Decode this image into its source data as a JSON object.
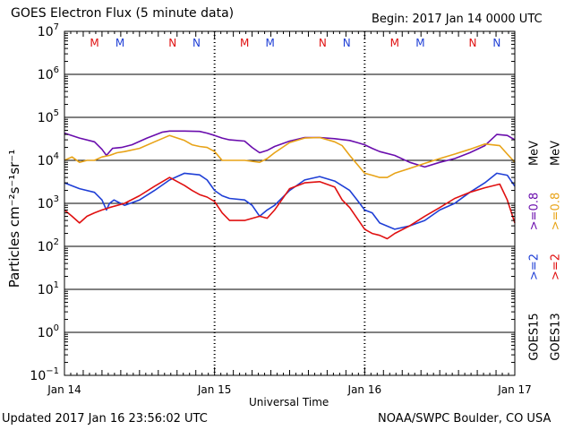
{
  "title": "GOES Electron Flux (5 minute data)",
  "begin_label": "Begin: 2017 Jan 14 0000 UTC",
  "updated_label": "Updated 2017 Jan 16 23:56:02 UTC",
  "credit": "NOAA/SWPC Boulder, CO USA",
  "colors": {
    "goes15_high": "#6a0dad",
    "goes13_high": "#e8a317",
    "goes15_low": "#1f3fd6",
    "goes13_low": "#e01010",
    "marker_M": "#e01010",
    "marker_N_red": "#e01010",
    "marker_N_blue": "#1f3fd6",
    "marker_M_blue": "#1f3fd6"
  },
  "legend": {
    "goes15": "GOES15",
    "goes13": "GOES13",
    "ge2": ">=2",
    "ge08": ">=0.8",
    "mev": "MeV"
  },
  "chart_data": {
    "type": "line",
    "title": "GOES Electron Flux (5 minute data)",
    "xlabel": "Universal Time",
    "ylabel": "Particles cm⁻²s⁻¹sr⁻¹",
    "yscale": "log",
    "ylim": [
      0.1,
      10000000
    ],
    "xlim_days": [
      0,
      3
    ],
    "x_tick_labels": [
      "Jan 14",
      "Jan 15",
      "Jan 16",
      "Jan 17"
    ],
    "y_tick_exponents": [
      -1,
      0,
      1,
      2,
      3,
      4,
      5,
      6,
      7
    ],
    "grid": true,
    "reference_line": 1000,
    "x_units": "days since Jan 14 0000 UTC",
    "markers": [
      {
        "x": 0.2,
        "label": "M",
        "color": "#e01010"
      },
      {
        "x": 0.37,
        "label": "M",
        "color": "#1f3fd6"
      },
      {
        "x": 0.72,
        "label": "N",
        "color": "#e01010"
      },
      {
        "x": 0.88,
        "label": "N",
        "color": "#1f3fd6"
      },
      {
        "x": 1.2,
        "label": "M",
        "color": "#e01010"
      },
      {
        "x": 1.37,
        "label": "M",
        "color": "#1f3fd6"
      },
      {
        "x": 1.72,
        "label": "N",
        "color": "#e01010"
      },
      {
        "x": 1.88,
        "label": "N",
        "color": "#1f3fd6"
      },
      {
        "x": 2.2,
        "label": "M",
        "color": "#e01010"
      },
      {
        "x": 2.37,
        "label": "M",
        "color": "#1f3fd6"
      },
      {
        "x": 2.72,
        "label": "N",
        "color": "#e01010"
      },
      {
        "x": 2.88,
        "label": "N",
        "color": "#1f3fd6"
      }
    ],
    "series": [
      {
        "name": "GOES15 >=0.8 MeV",
        "color": "#6a0dad",
        "x": [
          0.0,
          0.1,
          0.2,
          0.25,
          0.28,
          0.32,
          0.38,
          0.45,
          0.55,
          0.65,
          0.7,
          0.8,
          0.9,
          0.95,
          1.0,
          1.05,
          1.1,
          1.2,
          1.25,
          1.3,
          1.35,
          1.4,
          1.5,
          1.6,
          1.7,
          1.8,
          1.9,
          1.95,
          2.0,
          2.05,
          2.1,
          2.2,
          2.3,
          2.4,
          2.5,
          2.6,
          2.7,
          2.8,
          2.88,
          2.95,
          3.0
        ],
        "y": [
          43000,
          33000,
          27000,
          18000,
          13000,
          19000,
          20000,
          23000,
          33000,
          45000,
          48000,
          48000,
          47000,
          43000,
          38000,
          33000,
          30000,
          28000,
          20000,
          15000,
          17000,
          21000,
          28000,
          34000,
          34000,
          32000,
          29000,
          26000,
          23000,
          19000,
          16000,
          13000,
          9000,
          7000,
          9000,
          11000,
          15000,
          22000,
          40000,
          38000,
          30000
        ]
      },
      {
        "name": "GOES13 >=0.8 MeV",
        "color": "#e8a317",
        "x": [
          0.0,
          0.05,
          0.1,
          0.15,
          0.2,
          0.25,
          0.3,
          0.35,
          0.4,
          0.5,
          0.6,
          0.7,
          0.8,
          0.85,
          0.9,
          0.95,
          1.0,
          1.05,
          1.1,
          1.2,
          1.3,
          1.35,
          1.4,
          1.5,
          1.6,
          1.7,
          1.8,
          1.85,
          1.9,
          2.0,
          2.05,
          2.1,
          2.15,
          2.2,
          2.3,
          2.4,
          2.5,
          2.6,
          2.7,
          2.8,
          2.9,
          2.95,
          3.0
        ],
        "y": [
          10000,
          12000,
          9000,
          10000,
          10000,
          12000,
          13000,
          15000,
          16000,
          19000,
          27000,
          38000,
          29000,
          23000,
          21000,
          20000,
          16000,
          10000,
          10000,
          10000,
          9000,
          11000,
          15000,
          26000,
          33000,
          34000,
          27000,
          22000,
          13000,
          5000,
          4500,
          4000,
          4000,
          5000,
          6500,
          8500,
          11000,
          14000,
          18000,
          24000,
          22000,
          14000,
          9000
        ]
      },
      {
        "name": "GOES15 >=2 MeV",
        "color": "#1f3fd6",
        "x": [
          0.0,
          0.1,
          0.2,
          0.25,
          0.28,
          0.3,
          0.33,
          0.4,
          0.5,
          0.6,
          0.7,
          0.8,
          0.9,
          0.95,
          1.0,
          1.05,
          1.1,
          1.2,
          1.25,
          1.3,
          1.35,
          1.4,
          1.5,
          1.6,
          1.7,
          1.8,
          1.9,
          1.95,
          2.0,
          2.05,
          2.1,
          2.2,
          2.3,
          2.4,
          2.5,
          2.6,
          2.7,
          2.8,
          2.88,
          2.95,
          3.0
        ],
        "y": [
          3000,
          2200,
          1800,
          1200,
          700,
          1000,
          1200,
          900,
          1200,
          2000,
          3500,
          5000,
          4600,
          3500,
          2000,
          1500,
          1300,
          1200,
          900,
          500,
          700,
          900,
          2000,
          3500,
          4200,
          3300,
          2000,
          1200,
          700,
          600,
          350,
          250,
          300,
          400,
          700,
          1000,
          1800,
          3000,
          5000,
          4500,
          2500
        ]
      },
      {
        "name": "GOES13 >=2 MeV",
        "color": "#e01010",
        "x": [
          0.0,
          0.05,
          0.1,
          0.15,
          0.2,
          0.25,
          0.3,
          0.4,
          0.5,
          0.6,
          0.7,
          0.8,
          0.85,
          0.9,
          0.95,
          1.0,
          1.05,
          1.1,
          1.2,
          1.3,
          1.35,
          1.4,
          1.5,
          1.6,
          1.7,
          1.8,
          1.85,
          1.9,
          2.0,
          2.05,
          2.1,
          2.15,
          2.2,
          2.3,
          2.4,
          2.5,
          2.6,
          2.7,
          2.8,
          2.9,
          2.95,
          3.0
        ],
        "y": [
          700,
          500,
          350,
          500,
          600,
          700,
          800,
          1000,
          1500,
          2500,
          4000,
          2600,
          2000,
          1600,
          1400,
          1100,
          600,
          400,
          400,
          500,
          450,
          700,
          2200,
          3000,
          3200,
          2400,
          1200,
          800,
          250,
          200,
          180,
          150,
          200,
          300,
          500,
          800,
          1300,
          1800,
          2300,
          2800,
          1200,
          350
        ]
      }
    ]
  }
}
